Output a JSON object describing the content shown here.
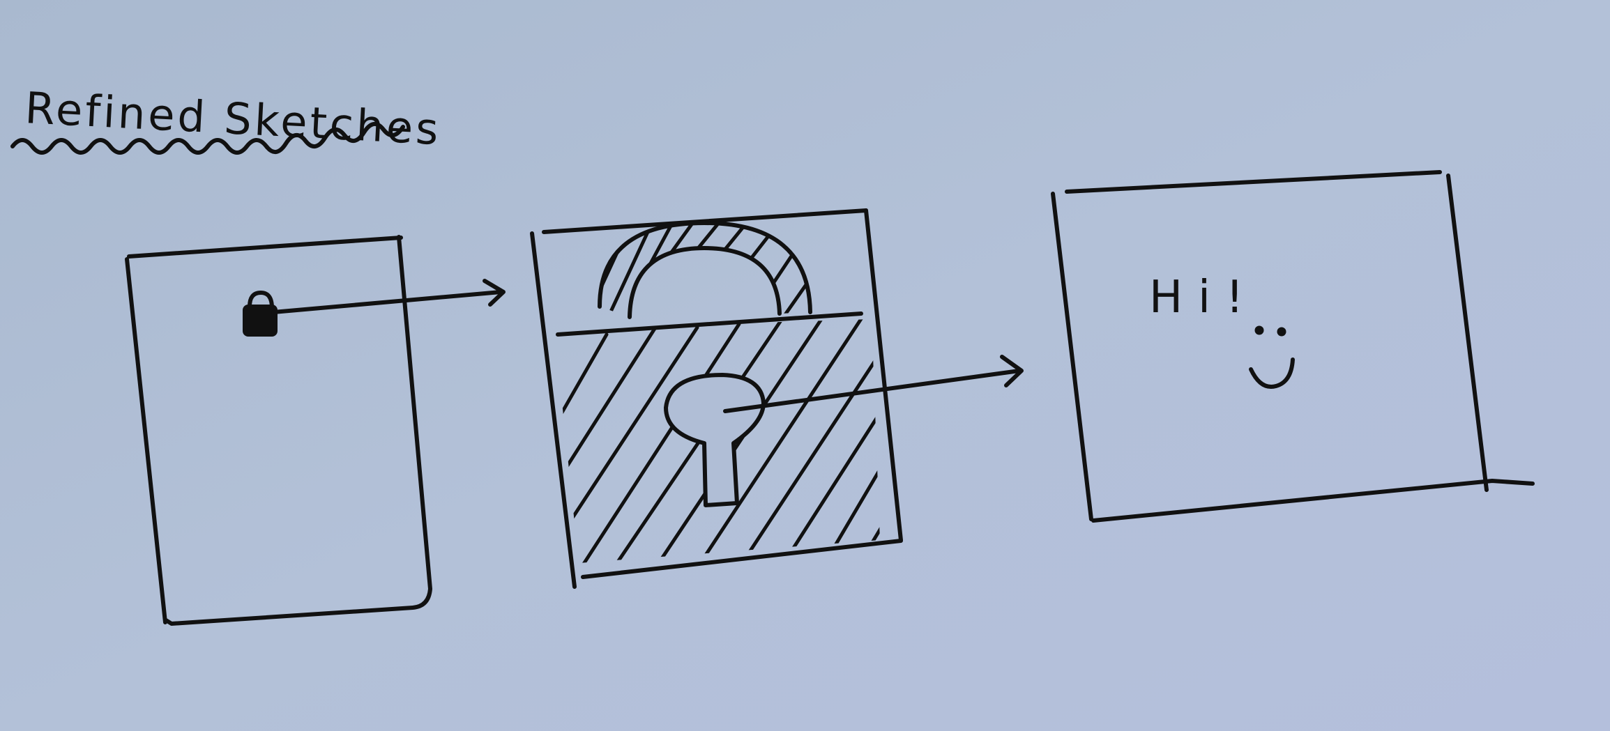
{
  "title": "Refined Sketches",
  "frames": [
    {
      "id": "frame-1",
      "contains": "lock-icon"
    },
    {
      "id": "frame-2",
      "contains": "large-padlock"
    },
    {
      "id": "frame-3",
      "contains": "greeting"
    }
  ],
  "greeting": "Hi!",
  "colors": {
    "paper": "#aebdd4",
    "ink": "#111111"
  }
}
